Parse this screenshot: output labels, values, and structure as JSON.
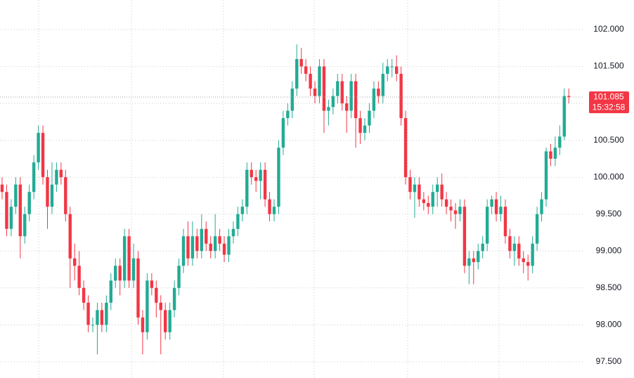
{
  "chart_data": {
    "type": "candlestick",
    "up_color": "#22ab94",
    "down_color": "#f23645",
    "grid": true,
    "ylim": [
      97.28,
      102.4
    ],
    "yticks": [
      {
        "value": 97.5,
        "label": "97.500"
      },
      {
        "value": 98,
        "label": "98.000"
      },
      {
        "value": 98.5,
        "label": "98.500"
      },
      {
        "value": 99,
        "label": "99.000"
      },
      {
        "value": 99.5,
        "label": "99.500"
      },
      {
        "value": 100,
        "label": "100.000"
      },
      {
        "value": 100.5,
        "label": "100.500"
      },
      {
        "value": 101,
        "label": "101.000"
      },
      {
        "value": 101.5,
        "label": "101.500"
      },
      {
        "value": 102,
        "label": "102.000"
      }
    ],
    "last_price": {
      "value": 101.085,
      "label": "101.085"
    },
    "countdown": "15:32:58",
    "open": [
      99.9,
      99.8,
      99.3,
      99.6,
      99.9,
      99.2,
      99.5,
      99.8,
      100.2,
      100.6,
      100.0,
      99.6,
      99.9,
      100.1,
      100.0,
      99.5,
      98.9,
      98.8,
      98.5,
      98.3,
      98.0,
      98.0,
      98.2,
      98.0,
      98.3,
      98.6,
      98.8,
      98.6,
      99.2,
      98.6,
      98.9,
      98.1,
      97.9,
      98.6,
      98.5,
      98.3,
      98.2,
      97.9,
      98.2,
      98.5,
      98.8,
      99.2,
      98.9,
      99.2,
      99.0,
      99.3,
      99.1,
      99.0,
      99.2,
      99.1,
      98.95,
      99.2,
      99.3,
      99.5,
      99.6,
      100.1,
      100.0,
      99.95,
      100.1,
      99.7,
      99.5,
      99.6,
      100.4,
      100.8,
      100.9,
      101.2,
      101.6,
      101.5,
      101.4,
      101.2,
      101.1,
      101.5,
      100.9,
      100.95,
      101.1,
      101.3,
      101.0,
      100.9,
      101.3,
      100.8,
      100.6,
      100.7,
      100.9,
      101.2,
      101.1,
      101.4,
      101.5,
      101.5,
      101.4,
      100.8,
      100.0,
      99.8,
      99.9,
      99.7,
      99.65,
      99.6,
      99.8,
      99.9,
      99.7,
      99.6,
      99.55,
      99.5,
      99.6,
      98.8,
      98.9,
      98.85,
      99.0,
      99.1,
      99.6,
      99.7,
      99.5,
      99.6,
      99.2,
      99.0,
      99.1,
      98.9,
      98.85,
      98.8,
      99.1,
      99.5,
      99.7,
      100.35,
      100.25,
      100.4,
      100.55,
      101.1
    ],
    "high": [
      100.0,
      99.9,
      99.7,
      100.0,
      100.0,
      99.6,
      99.9,
      100.3,
      100.7,
      100.7,
      100.1,
      100.2,
      100.2,
      100.2,
      100.1,
      99.6,
      99.1,
      99.0,
      98.6,
      98.4,
      98.1,
      98.3,
      98.3,
      98.4,
      98.7,
      98.9,
      98.9,
      99.3,
      99.3,
      99.1,
      99.0,
      98.2,
      98.7,
      98.7,
      98.6,
      98.4,
      98.3,
      98.3,
      98.6,
      98.9,
      99.3,
      99.4,
      99.4,
      99.3,
      99.5,
      99.4,
      99.2,
      99.5,
      99.3,
      99.2,
      99.3,
      99.4,
      99.6,
      99.7,
      100.2,
      100.2,
      100.1,
      100.2,
      100.2,
      99.8,
      99.7,
      100.5,
      100.9,
      101.0,
      101.3,
      101.8,
      101.75,
      101.6,
      101.5,
      101.3,
      101.6,
      101.6,
      101.05,
      101.2,
      101.4,
      101.4,
      101.1,
      101.4,
      101.4,
      100.9,
      100.8,
      101.0,
      101.3,
      101.3,
      101.55,
      101.6,
      101.6,
      101.65,
      101.5,
      100.9,
      100.1,
      100.0,
      100.0,
      99.8,
      99.75,
      99.9,
      100.0,
      100.05,
      99.8,
      99.7,
      99.65,
      99.7,
      99.7,
      99.0,
      99.0,
      99.1,
      99.2,
      99.7,
      99.75,
      99.8,
      99.75,
      99.7,
      99.3,
      99.2,
      99.2,
      99.0,
      98.95,
      99.2,
      99.6,
      99.8,
      100.4,
      100.45,
      100.55,
      100.7,
      101.2,
      101.2
    ],
    "low": [
      99.7,
      99.2,
      99.2,
      99.5,
      98.9,
      99.1,
      99.4,
      99.7,
      100.1,
      99.9,
      99.3,
      99.5,
      99.8,
      99.9,
      99.4,
      98.5,
      98.6,
      98.4,
      98.2,
      97.9,
      97.9,
      97.6,
      97.9,
      97.9,
      98.2,
      98.5,
      98.4,
      98.5,
      98.5,
      98.5,
      98.0,
      97.6,
      97.8,
      98.4,
      98.1,
      97.6,
      97.8,
      97.8,
      98.1,
      98.4,
      98.7,
      98.8,
      98.8,
      98.9,
      98.9,
      99.0,
      98.9,
      98.9,
      99.0,
      98.85,
      98.85,
      99.1,
      99.2,
      99.4,
      99.5,
      99.9,
      99.8,
      99.7,
      99.6,
      99.4,
      99.4,
      99.5,
      100.3,
      100.7,
      100.8,
      101.1,
      101.4,
      101.3,
      101.1,
      101.0,
      101.0,
      100.6,
      100.7,
      100.85,
      101.0,
      100.9,
      100.6,
      100.8,
      100.4,
      100.45,
      100.5,
      100.6,
      100.8,
      101.0,
      101.0,
      101.3,
      101.35,
      101.3,
      100.7,
      99.9,
      99.7,
      99.45,
      99.6,
      99.55,
      99.5,
      99.5,
      99.6,
      99.6,
      99.5,
      99.4,
      99.3,
      99.4,
      98.7,
      98.55,
      98.55,
      98.75,
      98.9,
      99.0,
      99.5,
      99.4,
      99.4,
      99.1,
      98.9,
      98.8,
      98.8,
      98.7,
      98.6,
      98.7,
      99.0,
      99.4,
      99.6,
      100.15,
      100.15,
      100.3,
      100.5,
      101.0
    ],
    "close": [
      99.8,
      99.3,
      99.6,
      99.9,
      99.2,
      99.5,
      99.8,
      100.2,
      100.6,
      100.0,
      99.6,
      99.9,
      100.1,
      100.0,
      99.5,
      98.9,
      98.8,
      98.5,
      98.3,
      98.0,
      98.0,
      98.2,
      98.0,
      98.3,
      98.6,
      98.8,
      98.6,
      99.2,
      98.6,
      98.9,
      98.1,
      97.9,
      98.6,
      98.5,
      98.3,
      98.2,
      97.9,
      98.2,
      98.5,
      98.8,
      99.2,
      98.9,
      99.2,
      99.0,
      99.3,
      99.1,
      99.0,
      99.2,
      99.1,
      98.95,
      99.2,
      99.3,
      99.5,
      99.6,
      100.1,
      100.0,
      99.95,
      100.1,
      99.7,
      99.5,
      99.6,
      100.4,
      100.8,
      100.9,
      101.2,
      101.6,
      101.5,
      101.4,
      101.2,
      101.1,
      101.5,
      100.9,
      100.95,
      101.1,
      101.3,
      101.0,
      100.9,
      101.3,
      100.8,
      100.6,
      100.7,
      100.9,
      101.2,
      101.1,
      101.4,
      101.5,
      101.5,
      101.4,
      100.8,
      100.0,
      99.8,
      99.9,
      99.7,
      99.65,
      99.6,
      99.8,
      99.9,
      99.7,
      99.6,
      99.55,
      99.5,
      99.6,
      98.8,
      98.9,
      98.85,
      99.0,
      99.1,
      99.6,
      99.7,
      99.5,
      99.6,
      99.2,
      99.0,
      99.1,
      98.9,
      98.85,
      98.8,
      99.1,
      99.5,
      99.7,
      100.35,
      100.25,
      100.4,
      100.55,
      101.1,
      101.085
    ]
  }
}
